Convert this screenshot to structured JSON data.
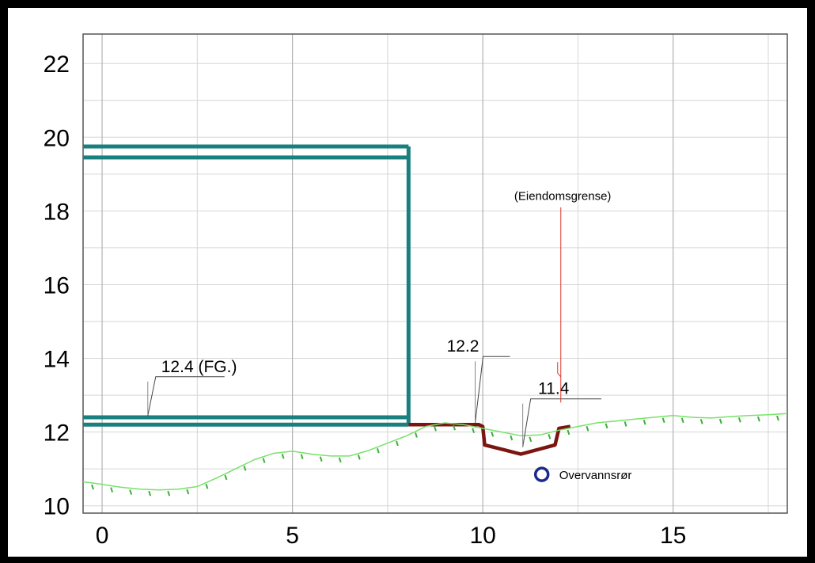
{
  "chart_data": {
    "type": "line",
    "title": "",
    "xlabel": "",
    "ylabel": "",
    "xlim": [
      -0.5,
      18
    ],
    "ylim": [
      9.8,
      22.8
    ],
    "grid": true,
    "x_ticks": [
      0,
      5,
      10,
      15
    ],
    "y_ticks": [
      10,
      12,
      14,
      16,
      18,
      20,
      22
    ],
    "x_tick_labels": [
      "0",
      "5",
      "10",
      "15"
    ],
    "y_tick_labels": [
      "10",
      "12",
      "14",
      "16",
      "18",
      "20",
      "22"
    ],
    "colors": {
      "building": "#1a7f7f",
      "road": "#7a1510",
      "terrain": "#77e26a",
      "terrain_hatch": "#3fae3a",
      "property_line": "#e0342a",
      "pipe": "#1a2a8c",
      "grid": "#d6d6d6"
    },
    "series": [
      {
        "role": "building-roof",
        "x": [
          -0.5,
          8.05,
          8.05,
          -0.5
        ],
        "y": [
          19.75,
          19.75,
          19.45,
          19.45
        ]
      },
      {
        "role": "building-wall",
        "x": [
          8.05,
          8.05
        ],
        "y": [
          19.75,
          12.2
        ]
      },
      {
        "role": "building-floor",
        "x": [
          -0.5,
          8.05,
          8.05,
          -0.5
        ],
        "y": [
          12.4,
          12.4,
          12.2,
          12.2
        ]
      },
      {
        "role": "road-ditch",
        "x": [
          8.05,
          9.9,
          10.0,
          10.05,
          11.0,
          11.9,
          12.0,
          12.3
        ],
        "y": [
          12.2,
          12.2,
          12.15,
          11.65,
          11.4,
          11.65,
          12.1,
          12.15
        ]
      },
      {
        "role": "terrain",
        "x": [
          -0.5,
          0,
          0.5,
          1,
          1.5,
          2,
          2.5,
          3,
          3.5,
          4,
          4.5,
          5,
          5.5,
          6,
          6.5,
          7,
          7.5,
          8,
          8.5,
          9,
          9.5,
          10,
          10.5,
          11,
          11.5,
          12,
          12.5,
          13,
          13.5,
          14,
          14.5,
          15,
          15.5,
          16,
          16.5,
          17,
          17.5,
          18
        ],
        "y": [
          10.65,
          10.58,
          10.5,
          10.45,
          10.43,
          10.45,
          10.52,
          10.75,
          11.0,
          11.25,
          11.42,
          11.48,
          11.4,
          11.35,
          11.35,
          11.5,
          11.7,
          11.9,
          12.15,
          12.25,
          12.2,
          12.1,
          12.0,
          11.9,
          11.92,
          12.05,
          12.15,
          12.25,
          12.3,
          12.35,
          12.4,
          12.45,
          12.4,
          12.38,
          12.42,
          12.45,
          12.47,
          12.5
        ]
      }
    ],
    "annotations": [
      {
        "id": "floor",
        "text": "12.4 (FG.)",
        "x": 2.8,
        "y": 13.5,
        "arrow_x": 1.2,
        "arrow_y": 12.4
      },
      {
        "id": "edge",
        "text": "12.2",
        "x": 10.3,
        "y": 14.05,
        "arrow_x": 9.8,
        "arrow_y": 12.2
      },
      {
        "id": "ditch",
        "text": "11.4",
        "x": 12.7,
        "y": 12.9,
        "arrow_x": 11.05,
        "arrow_y": 11.55
      },
      {
        "id": "property",
        "text": "(Eiendomsgrense)",
        "x": 12.1,
        "y": 18.3,
        "line_x": 12.05,
        "line_y_top": 18.1,
        "line_y_bottom": 12.8
      }
    ],
    "pipe": {
      "label": "Overvannsrør",
      "x": 11.55,
      "y": 10.85
    }
  }
}
